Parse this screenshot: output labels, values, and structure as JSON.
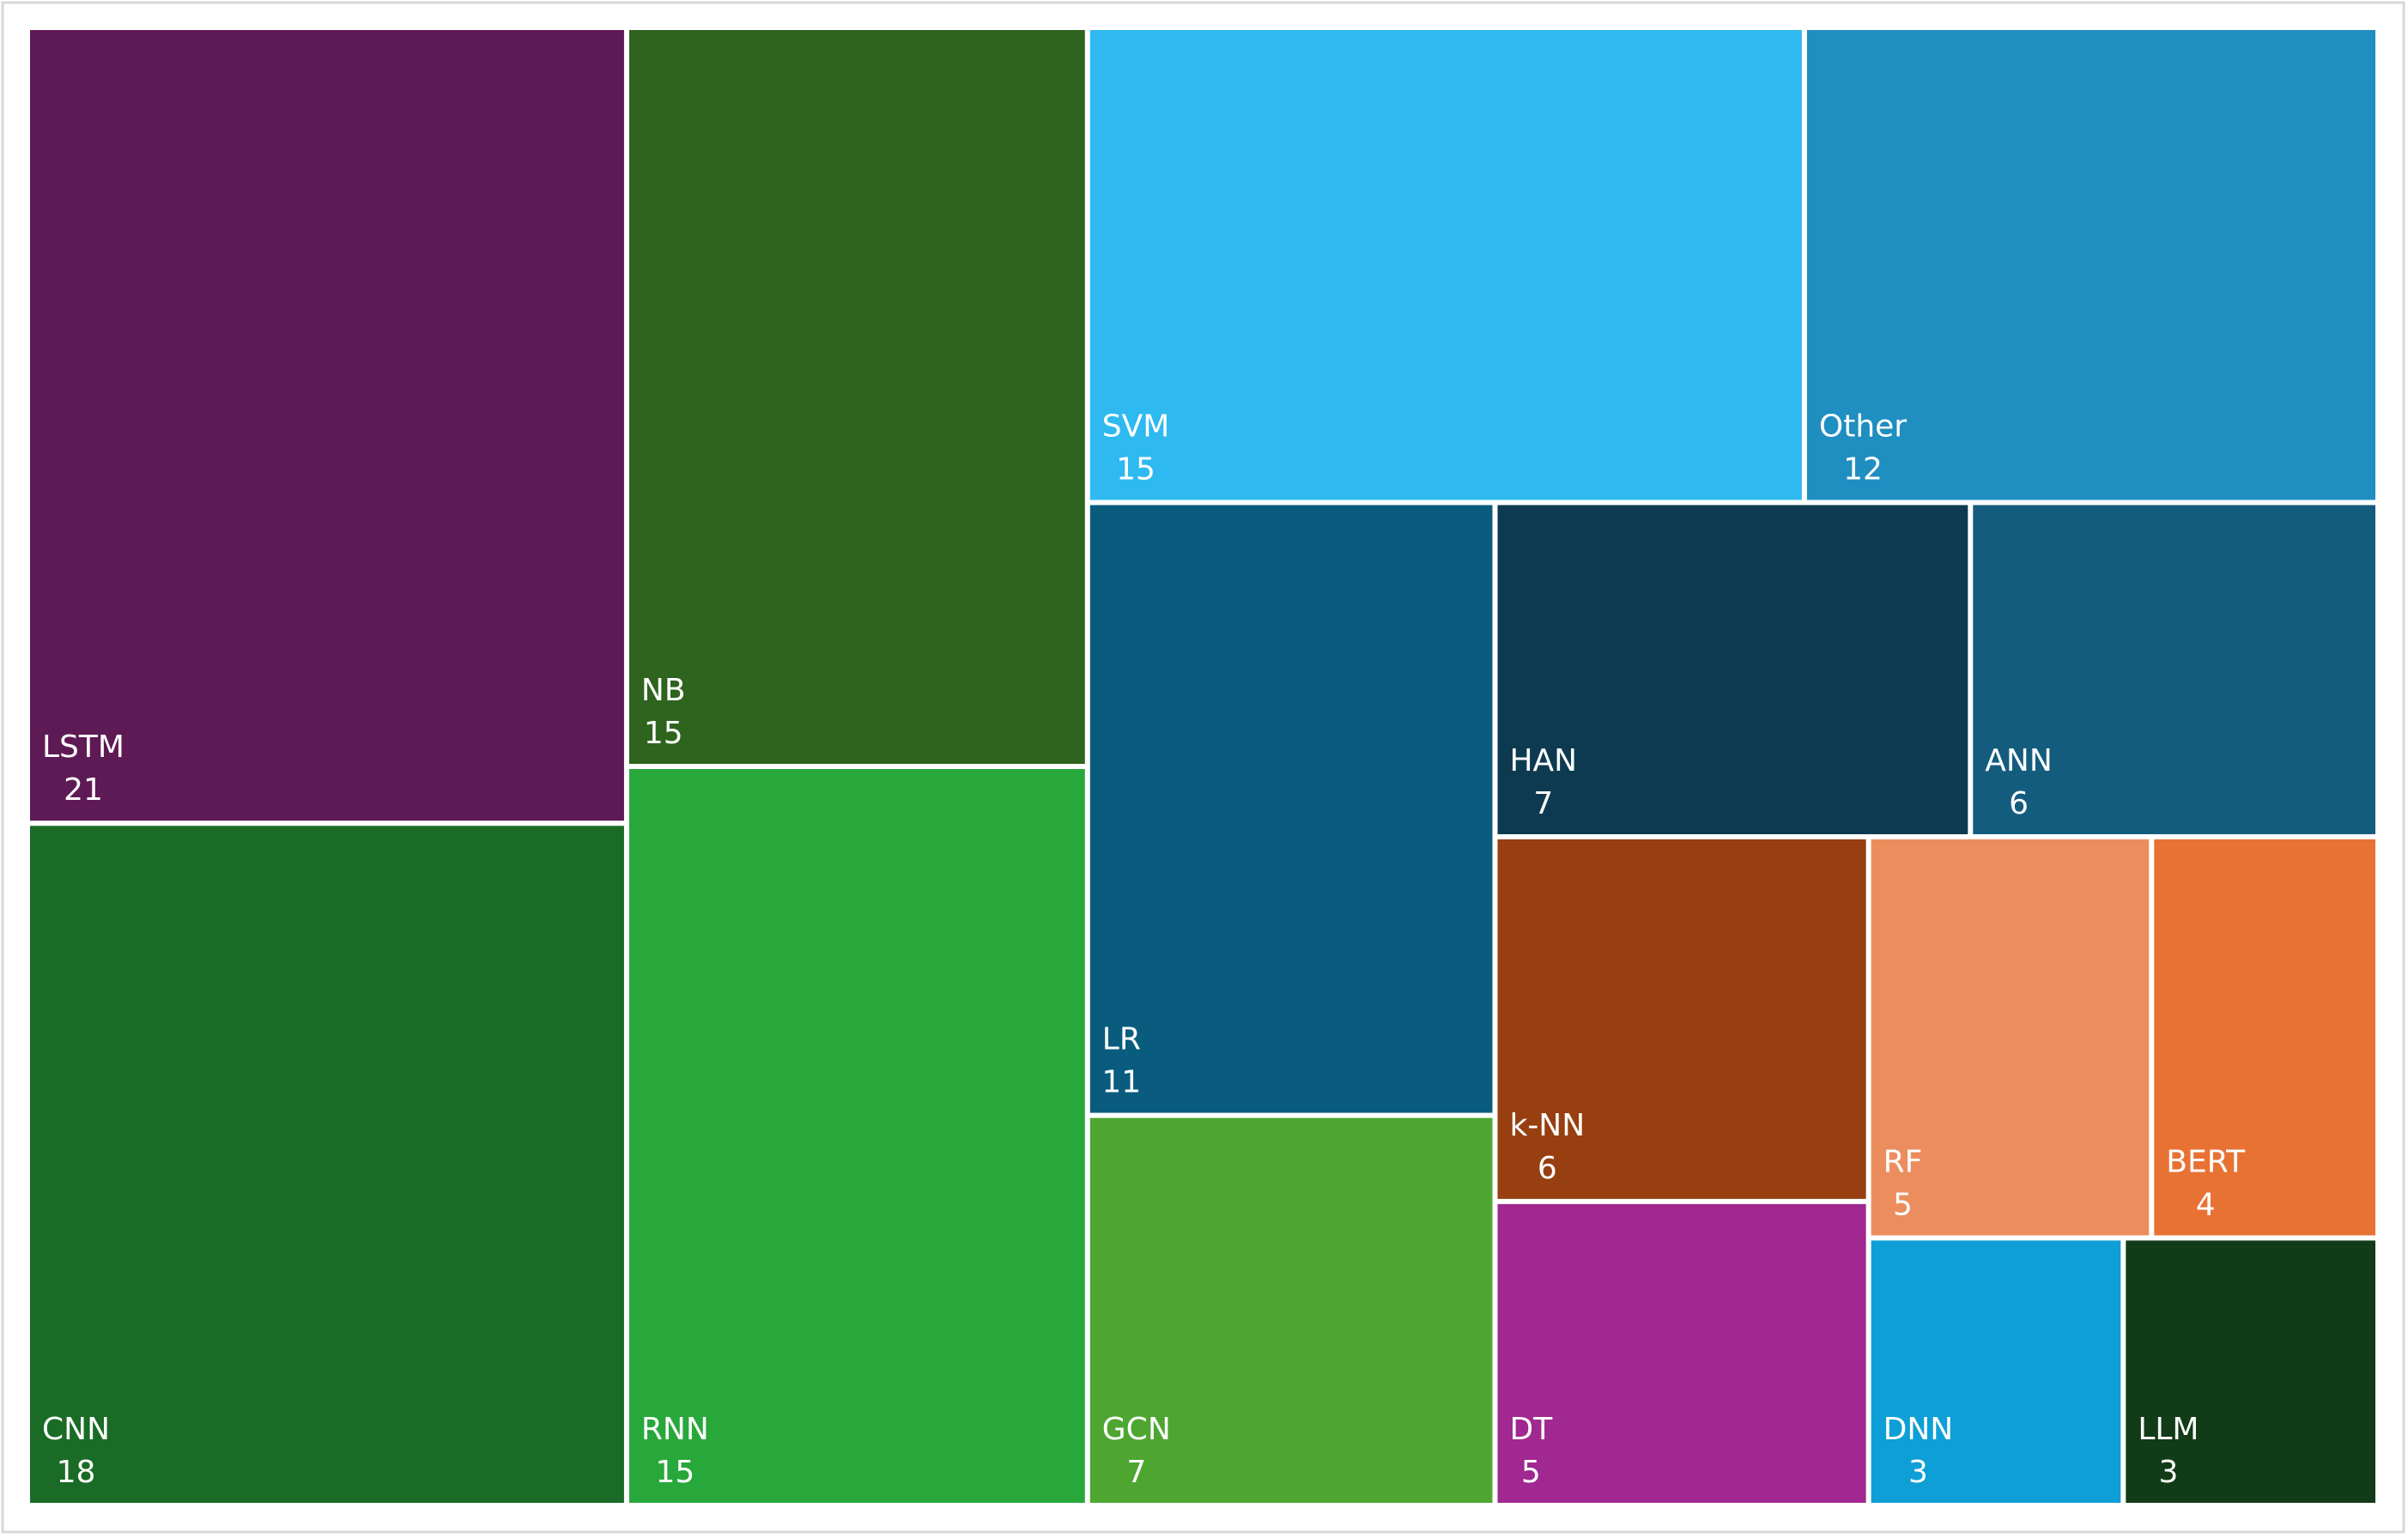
{
  "chart_data": {
    "type": "treemap",
    "categories": [
      "LSTM",
      "CNN",
      "NB",
      "RNN",
      "SVM",
      "Other",
      "LR",
      "GCN",
      "HAN",
      "ANN",
      "k-NN",
      "DT",
      "RF",
      "BERT",
      "DNN",
      "LLM"
    ],
    "values": [
      21,
      18,
      15,
      15,
      15,
      12,
      11,
      7,
      7,
      6,
      6,
      5,
      5,
      4,
      3,
      3
    ],
    "colors": [
      "#5e1a55",
      "#1a6b26",
      "#2f641e",
      "#28a83b",
      "#2eb9f0",
      "#1f8ec0",
      "#0a5c7e",
      "#4ea631",
      "#0d3a50",
      "#145c7e",
      "#973f10",
      "#a02890",
      "#ec8d5e",
      "#e87234",
      "#0e9fd6",
      "#123c17"
    ]
  }
}
